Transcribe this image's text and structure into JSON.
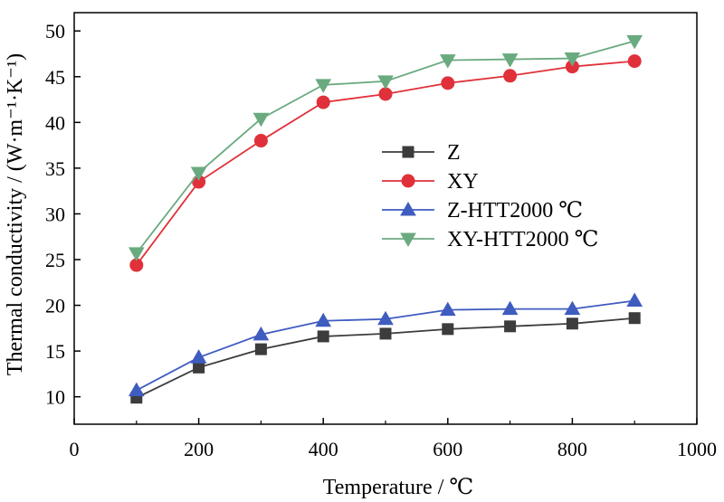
{
  "chart_data": {
    "type": "line",
    "title": "",
    "xlabel": "Temperature / ℃",
    "ylabel": "Thermal conductivity / (W·m⁻¹·K⁻¹)",
    "xlim": [
      0,
      1000
    ],
    "ylim": [
      7,
      52
    ],
    "xticks": [
      0,
      200,
      400,
      600,
      800,
      1000
    ],
    "yticks": [
      10,
      15,
      20,
      25,
      30,
      35,
      40,
      45,
      50
    ],
    "grid": false,
    "legend_position": "center-right",
    "x": [
      100,
      200,
      300,
      400,
      500,
      600,
      700,
      800,
      900
    ],
    "series": [
      {
        "name": "Z",
        "color": "#3c3c3c",
        "marker": "square",
        "values": [
          9.9,
          13.2,
          15.2,
          16.6,
          16.9,
          17.4,
          17.7,
          18.0,
          18.6
        ]
      },
      {
        "name": "XY",
        "color": "#e0313a",
        "marker": "circle",
        "values": [
          24.4,
          33.5,
          38.0,
          42.2,
          43.1,
          44.3,
          45.1,
          46.1,
          46.7
        ]
      },
      {
        "name": "Z-HTT2000 ℃",
        "color": "#3f5cbf",
        "marker": "triangle-up",
        "values": [
          10.7,
          14.3,
          16.8,
          18.3,
          18.5,
          19.5,
          19.6,
          19.6,
          20.5
        ]
      },
      {
        "name": "XY-HTT2000 ℃",
        "color": "#6aaa7f",
        "marker": "triangle-down",
        "values": [
          25.7,
          34.5,
          40.4,
          44.1,
          44.5,
          46.8,
          46.9,
          47.0,
          48.9
        ]
      }
    ]
  }
}
